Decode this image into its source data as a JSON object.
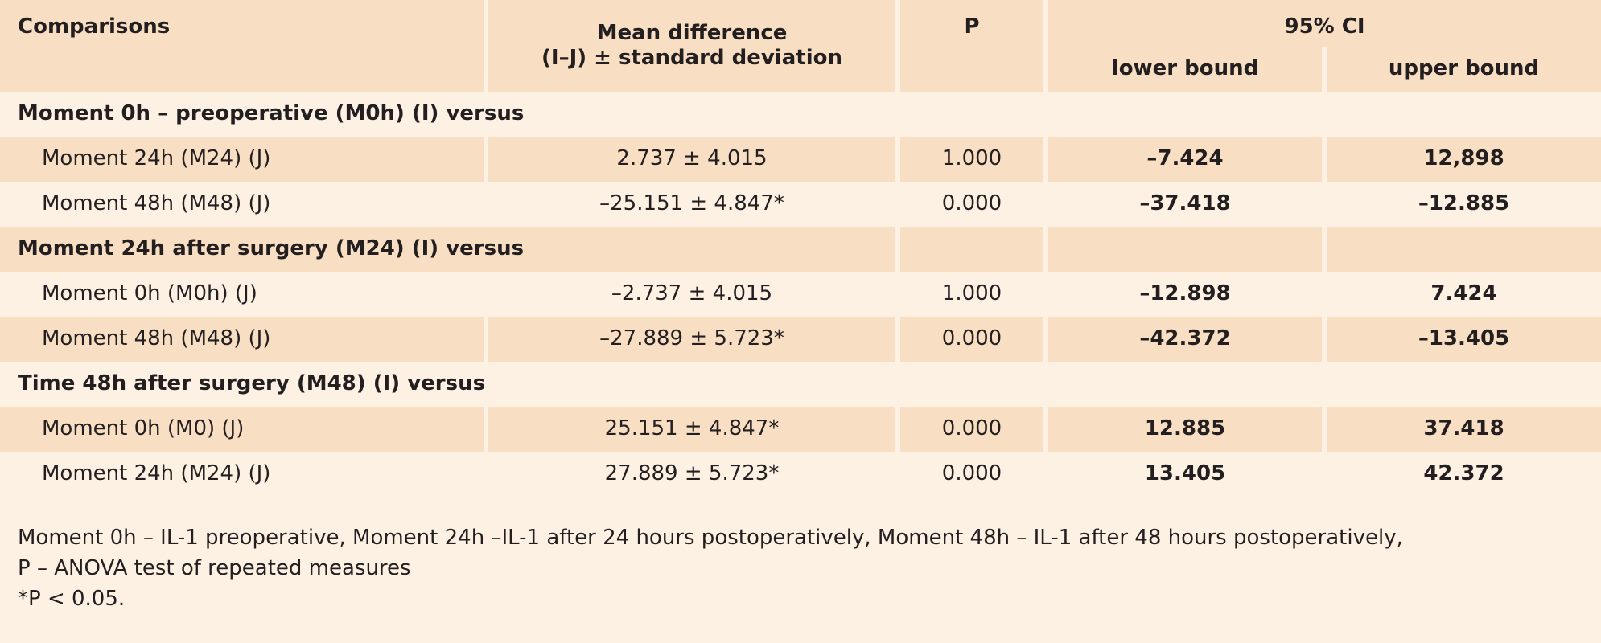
{
  "header": {
    "comparisons": "Comparisons",
    "mean_diff_line1": "Mean difference",
    "mean_diff_line2": "(I–J) ± standard deviation",
    "p": "P",
    "ci": "95% CI",
    "lower": "lower bound",
    "upper": "upper bound"
  },
  "groups": [
    {
      "title": "Moment 0h – preoperative (M0h) (I) versus",
      "rows": [
        {
          "label": "Moment 24h (M24) (J)",
          "mean": "2.737 ± 4.015",
          "p": "1.000",
          "lower": "–7.424",
          "upper": "12,898"
        },
        {
          "label": "Moment 48h (M48) (J)",
          "mean": "–25.151 ± 4.847*",
          "p": "0.000",
          "lower": "–37.418",
          "upper": "–12.885"
        }
      ]
    },
    {
      "title": "Moment 24h after surgery (M24) (I) versus",
      "rows": [
        {
          "label": "Moment 0h (M0h) (J)",
          "mean": "–2.737 ± 4.015",
          "p": "1.000",
          "lower": "–12.898",
          "upper": "7.424"
        },
        {
          "label": "Moment 48h (M48) (J)",
          "mean": "–27.889 ± 5.723*",
          "p": "0.000",
          "lower": "–42.372",
          "upper": "–13.405"
        }
      ]
    },
    {
      "title": "Time 48h after surgery (M48) (I) versus",
      "rows": [
        {
          "label": "Moment 0h (M0) (J)",
          "mean": "25.151 ± 4.847*",
          "p": "0.000",
          "lower": "12.885",
          "upper": "37.418"
        },
        {
          "label": "Moment 24h (M24) (J)",
          "mean": "27.889 ± 5.723*",
          "p": "0.000",
          "lower": "13.405",
          "upper": "42.372"
        }
      ]
    }
  ],
  "notes": {
    "line1": "Moment 0h – IL-1 preoperative, Moment 24h –IL-1 after 24 hours postoperatively, Moment 48h – IL-1 after 48 hours postoperatively,",
    "line2": "P – ANOVA test of repeated measures",
    "line3": "*P < 0.05."
  },
  "colors": {
    "background": "#fdf1e4",
    "shade": "#f8dec2",
    "text": "#231f20"
  }
}
